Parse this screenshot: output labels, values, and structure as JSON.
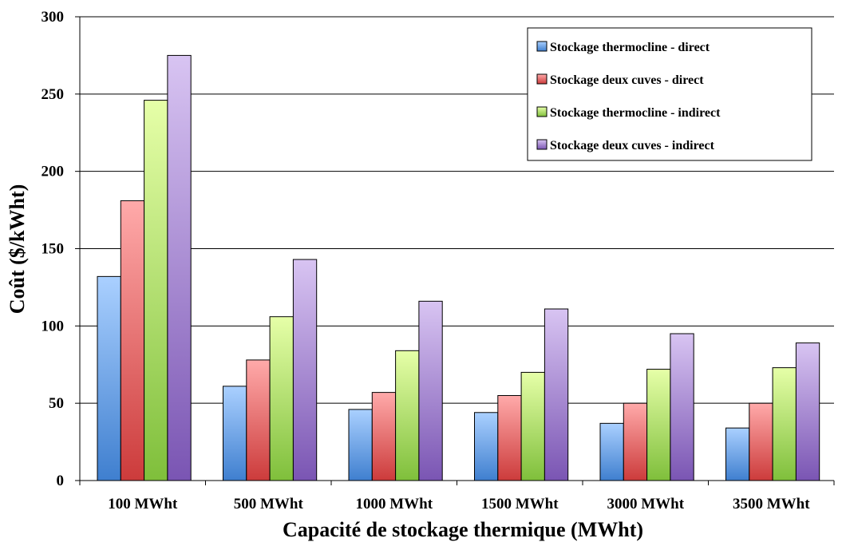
{
  "chart_data": {
    "type": "bar",
    "title": "",
    "xlabel": "Capacité de stockage thermique (MWht)",
    "ylabel": "Coût ($/kWht)",
    "ylim": [
      0,
      300
    ],
    "yticks": [
      0,
      50,
      100,
      150,
      200,
      250,
      300
    ],
    "grid": true,
    "legend_position": "top-right",
    "categories": [
      "100 MWht",
      "500 MWht",
      "1000 MWht",
      "1500 MWht",
      "3000 MWht",
      "3500 MWht"
    ],
    "series": [
      {
        "name": "Stockage thermocline - direct",
        "values": [
          132,
          61,
          46,
          44,
          37,
          34
        ],
        "color_light": "#aad0ff",
        "color_dark": "#3f7fcf"
      },
      {
        "name": "Stockage deux cuves - direct",
        "values": [
          181,
          78,
          57,
          55,
          50,
          50
        ],
        "color_light": "#ffaaaa",
        "color_dark": "#cc3b3b"
      },
      {
        "name": "Stockage thermocline - indirect",
        "values": [
          246,
          106,
          84,
          70,
          72,
          73
        ],
        "color_light": "#e6ffa8",
        "color_dark": "#7fbf3b"
      },
      {
        "name": "Stockage deux cuves - indirect",
        "values": [
          275,
          143,
          116,
          111,
          95,
          89
        ],
        "color_light": "#d8c4f2",
        "color_dark": "#7a55b3"
      }
    ]
  }
}
